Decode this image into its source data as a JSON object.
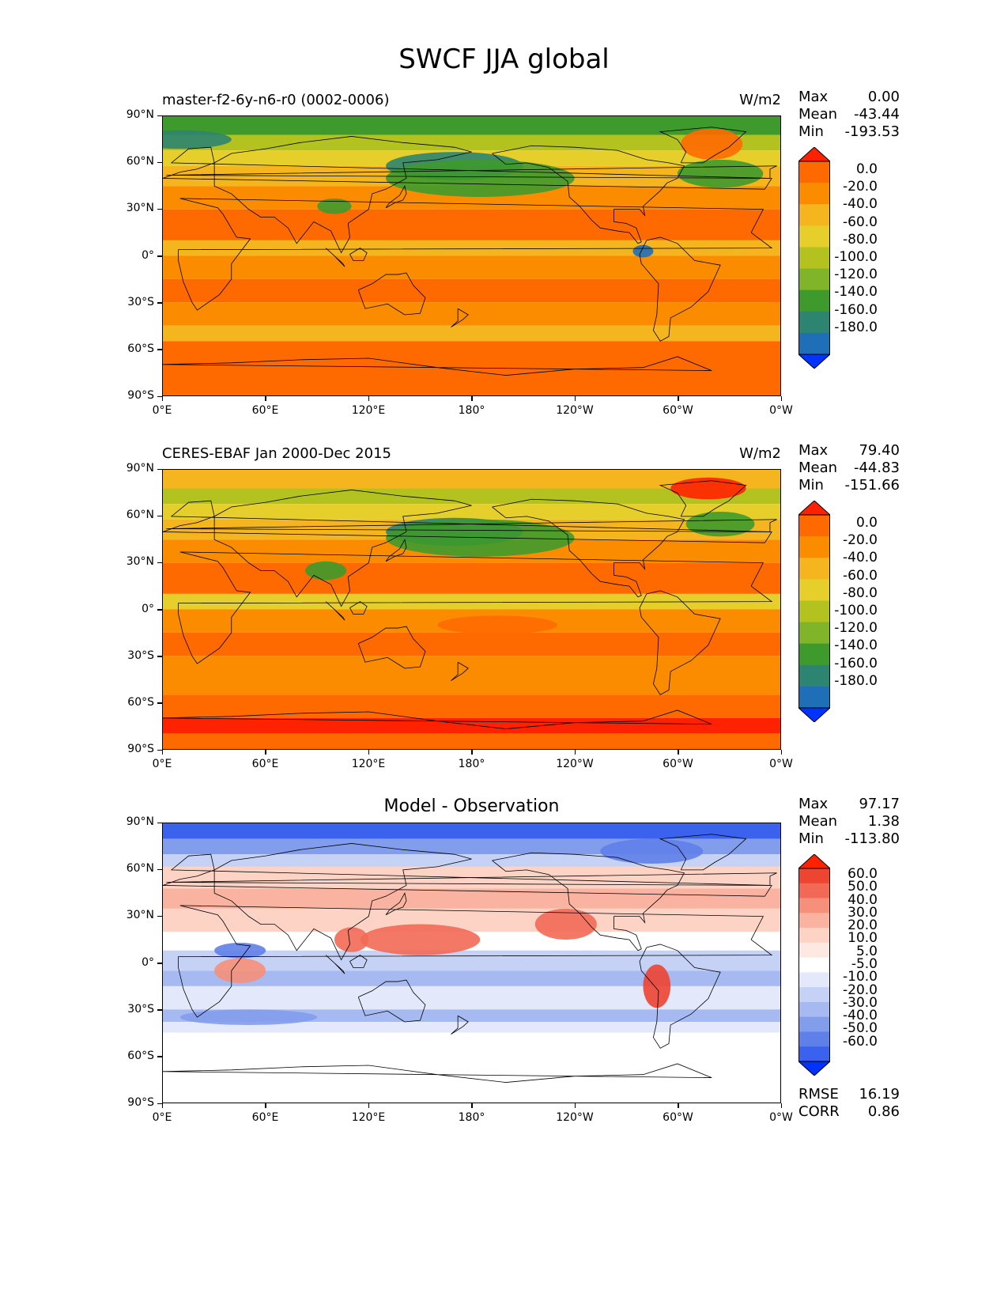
{
  "figure": {
    "title": "SWCF JJA global"
  },
  "axes": {
    "lat_labels": [
      "90°N",
      "60°N",
      "30°N",
      "0°",
      "30°S",
      "60°S",
      "90°S"
    ],
    "lon_labels": [
      "0°E",
      "60°E",
      "120°E",
      "180°",
      "120°W",
      "60°W",
      "0°W"
    ]
  },
  "panels": [
    {
      "title_left": "master-f2-6y-n6-r0 (0002-0006)",
      "title_center": "",
      "units": "W/m2",
      "stats": {
        "max_label": "Max",
        "max": "0.00",
        "mean_label": "Mean",
        "mean": "-43.44",
        "min_label": "Min",
        "min": "-193.53"
      },
      "colorbar": {
        "labels": [
          "0.0",
          "-20.0",
          "-40.0",
          "-60.0",
          "-80.0",
          "-100.0",
          "-120.0",
          "-140.0",
          "-160.0",
          "-180.0"
        ],
        "colors": [
          "#ff2200",
          "#ff6a00",
          "#fb8c00",
          "#f5b51f",
          "#e6cf2a",
          "#b3c21f",
          "#80b52a",
          "#3e9a2c",
          "#2d8470",
          "#1f6fb8",
          "#0033ff"
        ]
      }
    },
    {
      "title_left": "CERES-EBAF Jan 2000-Dec 2015",
      "title_center": "",
      "units": "W/m2",
      "stats": {
        "max_label": "Max",
        "max": "79.40",
        "mean_label": "Mean",
        "mean": "-44.83",
        "min_label": "Min",
        "min": "-151.66"
      },
      "colorbar": {
        "labels": [
          "0.0",
          "-20.0",
          "-40.0",
          "-60.0",
          "-80.0",
          "-100.0",
          "-120.0",
          "-140.0",
          "-160.0",
          "-180.0"
        ],
        "colors": [
          "#ff2200",
          "#ff6a00",
          "#fb8c00",
          "#f5b51f",
          "#e6cf2a",
          "#b3c21f",
          "#80b52a",
          "#3e9a2c",
          "#2d8470",
          "#1f6fb8",
          "#0033ff"
        ]
      }
    },
    {
      "title_left": "",
      "title_center": "Model - Observation",
      "units": "",
      "stats": {
        "max_label": "Max",
        "max": "97.17",
        "mean_label": "Mean",
        "mean": "1.38",
        "min_label": "Min",
        "min": "-113.80"
      },
      "colorbar": {
        "labels": [
          "60.0",
          "50.0",
          "40.0",
          "30.0",
          "20.0",
          "10.0",
          "5.0",
          "-5.0",
          "-10.0",
          "-20.0",
          "-30.0",
          "-40.0",
          "-50.0",
          "-60.0"
        ],
        "colors": [
          "#ff2200",
          "#ee4432",
          "#f26a55",
          "#f6907a",
          "#f9b3a0",
          "#fcd3c5",
          "#fde9e2",
          "#ffffff",
          "#e3e9fb",
          "#c5d2f6",
          "#a6b9f1",
          "#839ded",
          "#5f80e9",
          "#3a62ee",
          "#0033ff"
        ]
      },
      "footer": {
        "rmse_label": "RMSE",
        "rmse": "16.19",
        "corr_label": "CORR",
        "corr": "0.86"
      }
    }
  ],
  "colors": {
    "diff_positive": "#f26a55",
    "diff_negative": "#5f80e9",
    "coast": "#000000"
  }
}
